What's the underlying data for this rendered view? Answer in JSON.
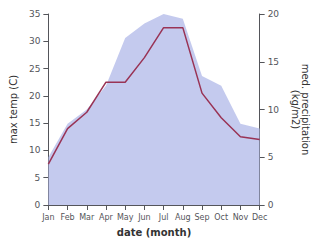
{
  "chart_data": {
    "type": "line",
    "categories": [
      "Jan",
      "Feb",
      "Mar",
      "Apr",
      "May",
      "Jun",
      "Jul",
      "Aug",
      "Sep",
      "Oct",
      "Nov",
      "Dec"
    ],
    "xlabel": "date (month)",
    "ylabel": "max temp (C)",
    "y2label": "med. precipitation\n(kg/m2)",
    "series": [
      {
        "type": "area",
        "color": "#b0b8e8",
        "axis": "y2",
        "values": [
          5.0,
          8.5,
          10.0,
          12.5,
          17.5,
          19.0,
          20.0,
          19.5,
          13.5,
          12.5,
          8.5,
          8.0
        ]
      },
      {
        "type": "line",
        "color": "#993355",
        "values": [
          7.5,
          14.0,
          17.0,
          22.5,
          22.5,
          27.0,
          32.5,
          32.5,
          20.5,
          16.0,
          12.5,
          12.0
        ]
      }
    ],
    "ylim": [
      0,
      35
    ],
    "yticks": [
      0,
      5,
      10,
      15,
      20,
      25,
      30,
      35
    ],
    "y2lim": [
      0,
      20
    ],
    "y2ticks": [
      0,
      5,
      10,
      15,
      20
    ],
    "grid": false
  }
}
